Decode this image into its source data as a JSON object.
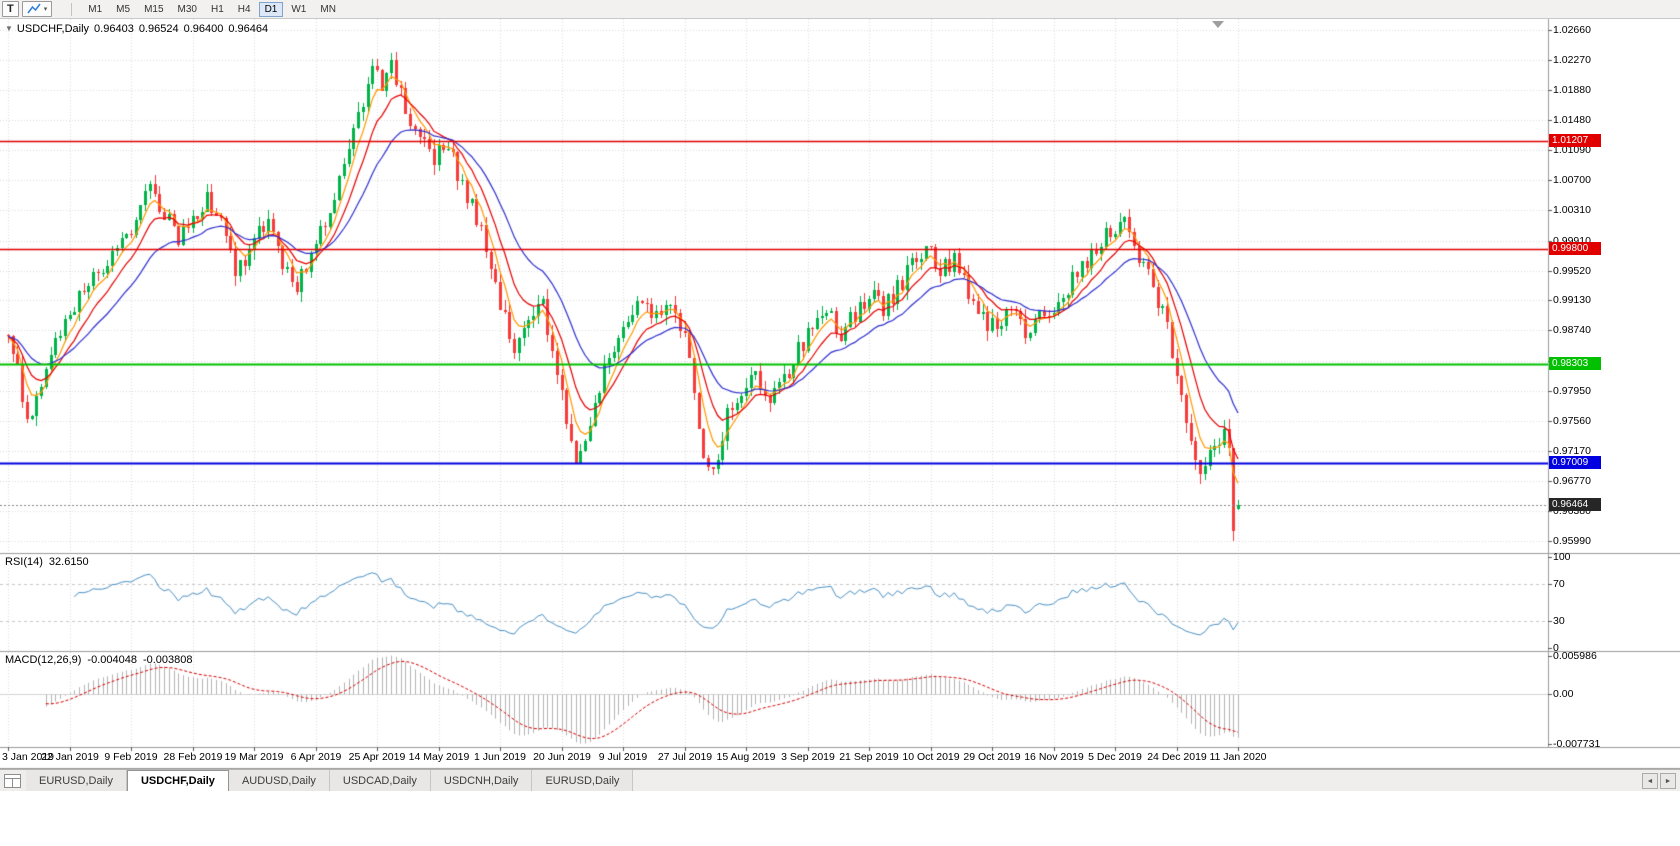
{
  "toolbar": {
    "text_tool_label": "T",
    "dropdown_caret": "▾",
    "timeframes": [
      "M1",
      "M5",
      "M15",
      "M30",
      "H1",
      "H4",
      "D1",
      "W1",
      "MN"
    ],
    "active_timeframe": "D1"
  },
  "chart": {
    "collapse_glyph": "▼",
    "title": {
      "symbol_period": "USDCHF,Daily",
      "open": "0.96403",
      "high": "0.96524",
      "low": "0.96400",
      "close": "0.96464"
    },
    "price_axis": [
      "1.02660",
      "1.02270",
      "1.01880",
      "1.01480",
      "1.01090",
      "1.00700",
      "1.00310",
      "0.99910",
      "0.99520",
      "0.99130",
      "0.98740",
      "0.98340",
      "0.97950",
      "0.97560",
      "0.97170",
      "0.96770",
      "0.96380",
      "0.95990"
    ],
    "date_axis": [
      "3 Jan 2019",
      "22 Jan 2019",
      "9 Feb 2019",
      "28 Feb 2019",
      "19 Mar 2019",
      "6 Apr 2019",
      "25 Apr 2019",
      "14 May 2019",
      "1 Jun 2019",
      "20 Jun 2019",
      "9 Jul 2019",
      "27 Jul 2019",
      "15 Aug 2019",
      "3 Sep 2019",
      "21 Sep 2019",
      "10 Oct 2019",
      "29 Oct 2019",
      "16 Nov 2019",
      "5 Dec 2019",
      "24 Dec 2019",
      "11 Jan 2020"
    ],
    "levels": [
      {
        "label": "1.01207",
        "price": 1.01207,
        "color": "#e00000",
        "line_width": 1.4
      },
      {
        "label": "0.99800",
        "price": 0.998,
        "color": "#e00000",
        "line_width": 1.4
      },
      {
        "label": "0.98303",
        "price": 0.98303,
        "color": "#00c000",
        "line_width": 2
      },
      {
        "label": "0.97009",
        "price": 0.97009,
        "color": "#0000e0",
        "line_width": 2
      }
    ],
    "current_price": {
      "label": "0.96464",
      "value": 0.96464,
      "badge_color": "#262626"
    }
  },
  "rsi": {
    "label": "RSI(14)",
    "value": "32.6150",
    "axis": [
      "100",
      "70",
      "30",
      "0"
    ],
    "guide_levels": [
      70,
      30
    ],
    "line_color": "#4a90c4"
  },
  "macd": {
    "label": "MACD(12,26,9)",
    "value_main": "-0.004048",
    "value_signal": "-0.003808",
    "axis": [
      "0.005986",
      "0.00",
      "-0.007731"
    ],
    "hist_color": "#b4b4b4",
    "signal_color": "#d40000"
  },
  "tabs": {
    "items": [
      "EURUSD,Daily",
      "USDCHF,Daily",
      "AUDUSD,Daily",
      "USDCAD,Daily",
      "USDCNH,Daily",
      "EURUSD,Daily"
    ],
    "active_index": 1,
    "scroll_left": "◄",
    "scroll_right": "►"
  },
  "chart_data": {
    "type": "candlestick",
    "symbol": "USDCHF",
    "timeframe": "Daily",
    "bars": 261,
    "x_first": "3 Jan 2019",
    "x_last": "11 Jan 2020",
    "price_range": [
      0.9599,
      1.0266
    ],
    "candle_colors": {
      "bull": "#00b44a",
      "bear": "#f63b3b"
    },
    "ma_overlays": [
      {
        "period": 5,
        "color": "#ff9800"
      },
      {
        "period": 10,
        "color": "#e60000"
      },
      {
        "period": 21,
        "color": "#3030d0"
      }
    ],
    "price_anchors": [
      [
        0,
        0.9868
      ],
      [
        2,
        0.982
      ],
      [
        4,
        0.9758
      ],
      [
        6,
        0.979
      ],
      [
        9,
        0.9855
      ],
      [
        13,
        0.9892
      ],
      [
        17,
        0.9935
      ],
      [
        21,
        0.9958
      ],
      [
        24,
        0.9992
      ],
      [
        27,
        1.002
      ],
      [
        30,
        1.0062
      ],
      [
        33,
        1.003
      ],
      [
        36,
        0.9993
      ],
      [
        39,
        1.0015
      ],
      [
        42,
        1.0048
      ],
      [
        45,
        1.001
      ],
      [
        48,
        0.995
      ],
      [
        52,
        0.9988
      ],
      [
        55,
        1.0018
      ],
      [
        58,
        0.996
      ],
      [
        61,
        0.9925
      ],
      [
        65,
        0.9992
      ],
      [
        68,
        1.0035
      ],
      [
        71,
        1.008
      ],
      [
        74,
        1.0155
      ],
      [
        77,
        1.021
      ],
      [
        79,
        1.0195
      ],
      [
        81,
        1.0222
      ],
      [
        84,
        1.016
      ],
      [
        87,
        1.0125
      ],
      [
        90,
        1.0098
      ],
      [
        93,
        1.0118
      ],
      [
        96,
        1.006
      ],
      [
        99,
        1.002
      ],
      [
        102,
        0.996
      ],
      [
        104,
        0.9905
      ],
      [
        107,
        0.985
      ],
      [
        110,
        0.9882
      ],
      [
        113,
        0.9908
      ],
      [
        115,
        0.9845
      ],
      [
        118,
        0.976
      ],
      [
        120,
        0.9706
      ],
      [
        122,
        0.974
      ],
      [
        125,
        0.98
      ],
      [
        128,
        0.9852
      ],
      [
        131,
        0.9888
      ],
      [
        134,
        0.992
      ],
      [
        137,
        0.9893
      ],
      [
        140,
        0.9902
      ],
      [
        143,
        0.987
      ],
      [
        145,
        0.979
      ],
      [
        147,
        0.9705
      ],
      [
        149,
        0.9682
      ],
      [
        152,
        0.976
      ],
      [
        155,
        0.979
      ],
      [
        158,
        0.9812
      ],
      [
        161,
        0.978
      ],
      [
        164,
        0.9808
      ],
      [
        167,
        0.9846
      ],
      [
        170,
        0.988
      ],
      [
        173,
        0.991
      ],
      [
        176,
        0.9868
      ],
      [
        179,
        0.9895
      ],
      [
        182,
        0.9922
      ],
      [
        185,
        0.9898
      ],
      [
        188,
        0.993
      ],
      [
        191,
        0.9958
      ],
      [
        194,
        0.9985
      ],
      [
        197,
        0.995
      ],
      [
        200,
        0.9965
      ],
      [
        203,
        0.992
      ],
      [
        206,
        0.989
      ],
      [
        209,
        0.9872
      ],
      [
        212,
        0.9905
      ],
      [
        215,
        0.987
      ],
      [
        218,
        0.9888
      ],
      [
        221,
        0.9908
      ],
      [
        224,
        0.993
      ],
      [
        227,
        0.9955
      ],
      [
        230,
        0.9978
      ],
      [
        233,
        1.0005
      ],
      [
        236,
        1.0022
      ],
      [
        239,
        0.9975
      ],
      [
        242,
        0.993
      ],
      [
        245,
        0.988
      ],
      [
        247,
        0.9812
      ],
      [
        249,
        0.976
      ],
      [
        251,
        0.971
      ],
      [
        253,
        0.9688
      ],
      [
        255,
        0.9725
      ],
      [
        257,
        0.9738
      ],
      [
        258,
        0.9715
      ],
      [
        259,
        0.9612
      ],
      [
        260,
        0.9646
      ]
    ],
    "prev_candle": {
      "high": 0.9718,
      "low": 0.9599,
      "close": 0.9612
    },
    "last_candle": {
      "open": 0.96403,
      "high": 0.96524,
      "low": 0.964,
      "close": 0.96464
    },
    "indicators": [
      {
        "name": "RSI",
        "period": 14,
        "last": 32.615
      },
      {
        "name": "MACD",
        "fast": 12,
        "slow": 26,
        "signal": 9,
        "last_main": -0.004048,
        "last_signal": -0.003808
      }
    ]
  }
}
